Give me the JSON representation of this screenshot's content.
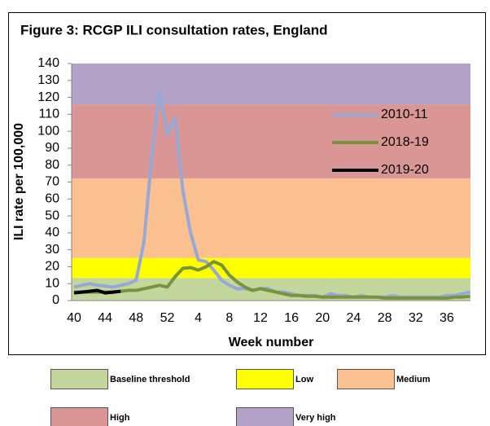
{
  "chart_data": {
    "type": "line",
    "title": "Figure 3: RCGP ILI consultation rates, England",
    "y_label": "ILI rate per 100,000",
    "x_label": "Week number",
    "categories": [
      40,
      null,
      null,
      null,
      44,
      null,
      null,
      null,
      48,
      null,
      null,
      null,
      52,
      null,
      null,
      null,
      4,
      null,
      null,
      null,
      8,
      null,
      null,
      null,
      12,
      null,
      null,
      null,
      16,
      null,
      null,
      null,
      20,
      null,
      null,
      null,
      24,
      null,
      null,
      null,
      28,
      null,
      null,
      null,
      32,
      null,
      null,
      null,
      36,
      null,
      null,
      null
    ],
    "ylim": [
      0,
      140
    ],
    "yticks": [
      0,
      10,
      20,
      30,
      40,
      50,
      60,
      70,
      80,
      90,
      100,
      110,
      120,
      130,
      140
    ],
    "bands": [
      {
        "name": "Baseline threshold",
        "color": "#c3d69b",
        "from": 0,
        "to": 13.3
      },
      {
        "name": "Low",
        "color": "#ffff00",
        "from": 13.3,
        "to": 25.2
      },
      {
        "name": "Medium",
        "color": "#fac090",
        "from": 25.2,
        "to": 72.1
      },
      {
        "name": "High",
        "color": "#d99694",
        "from": 72.1,
        "to": 115.9
      },
      {
        "name": "Very high",
        "color": "#b3a2c7",
        "from": 115.9,
        "to": 140
      }
    ],
    "series": [
      {
        "name": "2010-11",
        "color": "#95a8d6",
        "values": [
          8,
          9,
          10,
          9,
          8.5,
          8,
          9,
          10,
          12,
          35,
          85,
          124,
          98,
          108,
          65,
          40,
          24,
          23,
          18,
          12,
          9,
          7,
          7,
          6,
          7,
          7,
          5,
          5,
          4,
          3,
          3,
          3,
          2,
          4,
          3,
          3,
          2,
          3,
          2,
          2,
          2,
          3,
          2,
          2,
          2,
          2,
          2,
          2,
          3,
          3,
          4,
          5
        ]
      },
      {
        "name": "2018-19",
        "color": "#77933c",
        "values": [
          5,
          5,
          5,
          5,
          5,
          5,
          5.5,
          6,
          6,
          7,
          8,
          9,
          8,
          14,
          19,
          19.5,
          18,
          20,
          23,
          21,
          15,
          11,
          8,
          6,
          7,
          6,
          5,
          4,
          3,
          3,
          2.5,
          2.5,
          2,
          2,
          2,
          2,
          2,
          2,
          2,
          2,
          1.5,
          1.5,
          1.5,
          1.5,
          1.5,
          1.5,
          1.5,
          1.5,
          1.5,
          2,
          2,
          2.5
        ]
      },
      {
        "name": "2019-20",
        "color": "#000000",
        "values": [
          4.5,
          5,
          5.5,
          6,
          4.5,
          5,
          5.5,
          null,
          null,
          null,
          null,
          null,
          null,
          null,
          null,
          null,
          null,
          null,
          null,
          null,
          null,
          null,
          null,
          null,
          null,
          null,
          null,
          null,
          null,
          null,
          null,
          null,
          null,
          null,
          null,
          null,
          null,
          null,
          null,
          null,
          null,
          null,
          null,
          null,
          null,
          null,
          null,
          null,
          null,
          null,
          null,
          null
        ]
      }
    ]
  }
}
